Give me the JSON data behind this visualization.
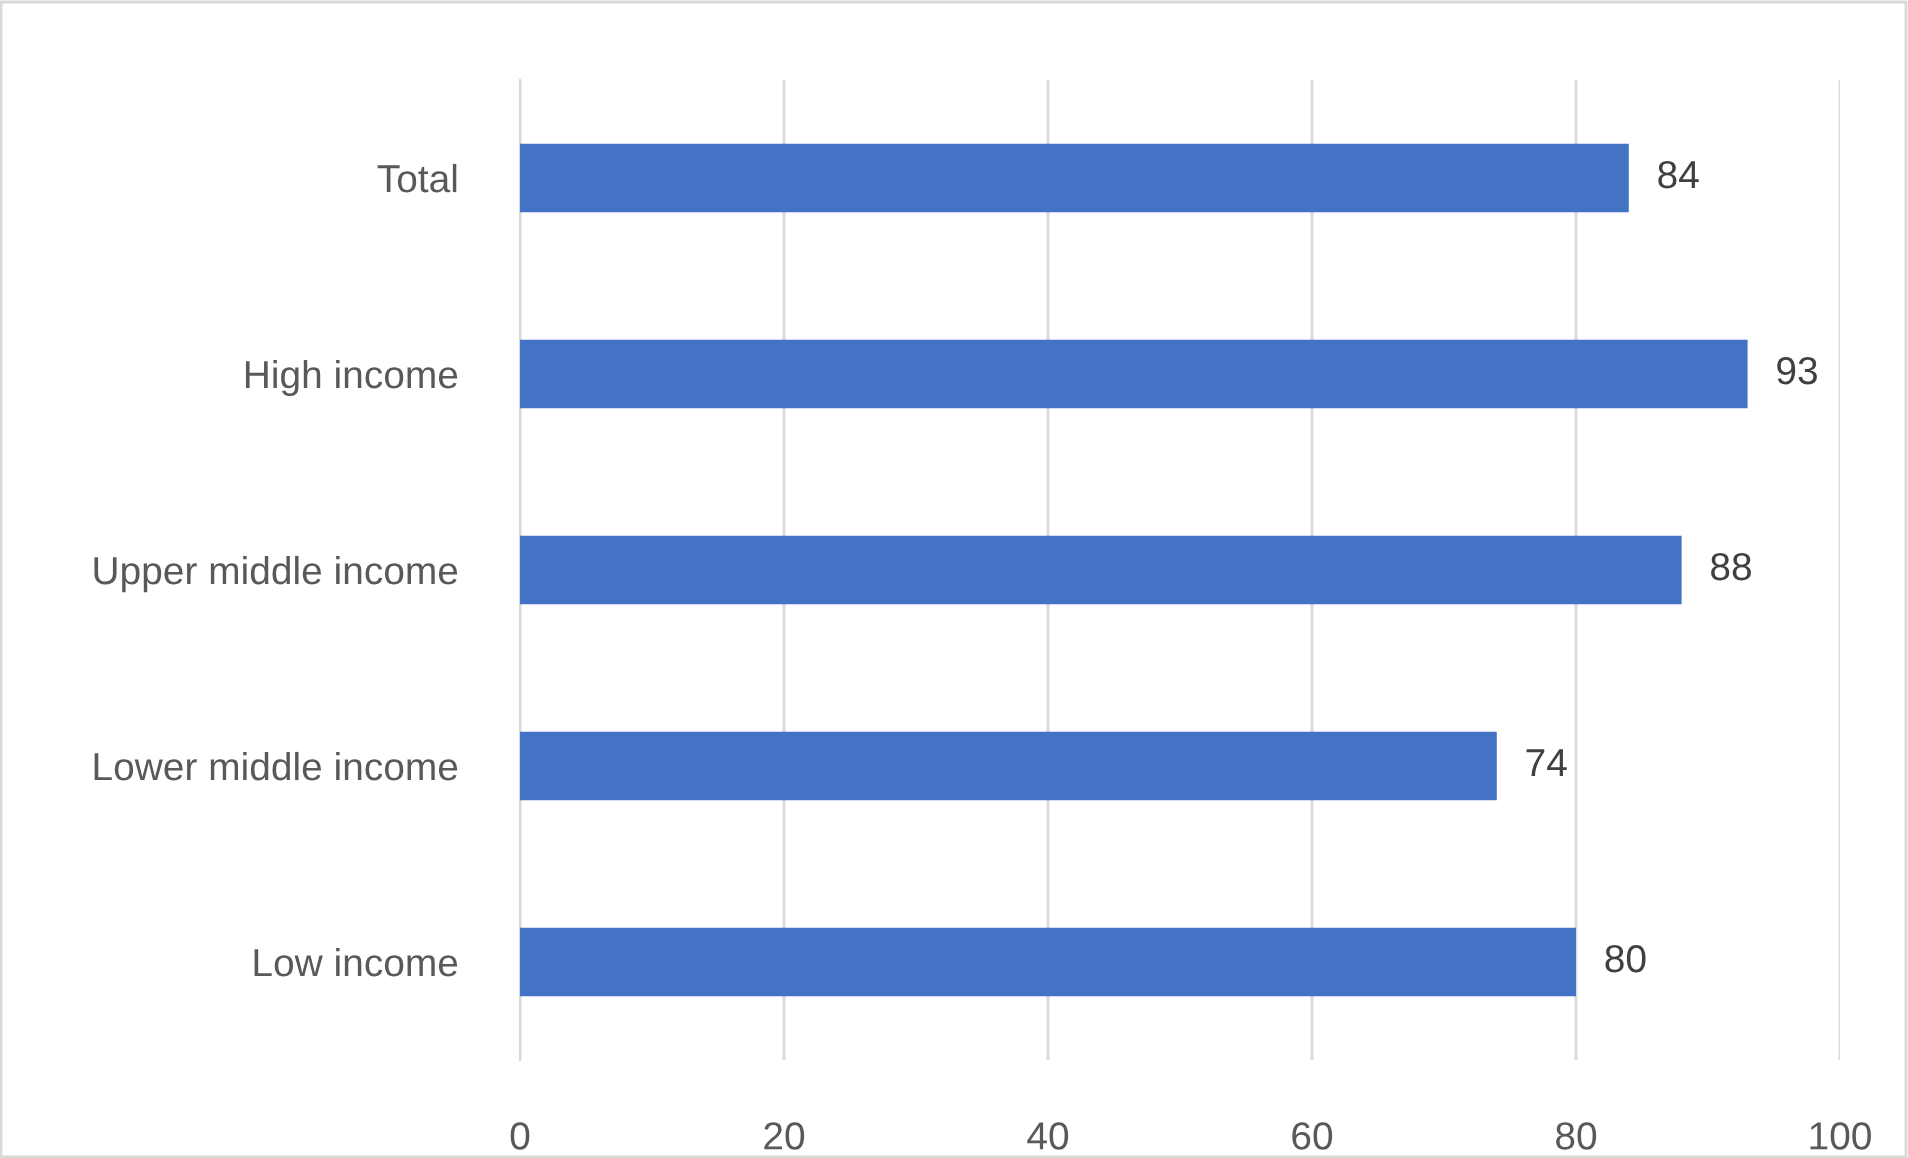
{
  "chart_data": {
    "type": "bar",
    "orientation": "horizontal",
    "categories": [
      "Total",
      "High income",
      "Upper middle income",
      "Lower middle income",
      "Low income"
    ],
    "values": [
      84,
      93,
      88,
      74,
      80
    ],
    "color": "#4472c4",
    "xlim": [
      0,
      100
    ],
    "xticks": [
      0,
      20,
      40,
      60,
      80,
      100
    ],
    "grid": "x",
    "data_labels": true
  }
}
